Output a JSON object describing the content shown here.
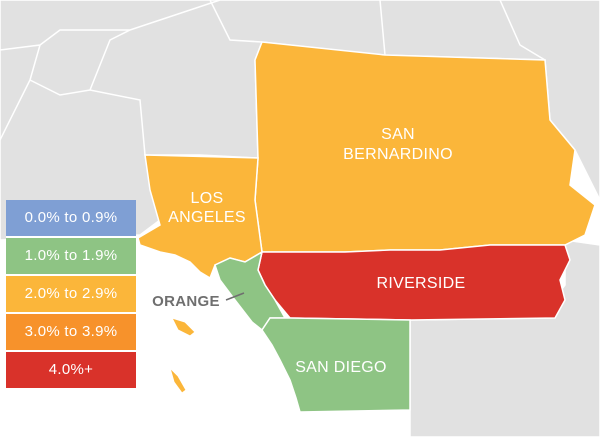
{
  "colors": {
    "background_land": "#e1e1e1",
    "border": "#ffffff",
    "range_0_0_9": "#7f9fd4",
    "range_1_1_9": "#8ec484",
    "range_2_2_9": "#fbb63a",
    "range_3_3_9": "#f7922b",
    "range_4_plus": "#d9322a",
    "orange_label": "#6f6f6f"
  },
  "legend": [
    {
      "label": "0.0% to 0.9%",
      "color": "#7f9fd4"
    },
    {
      "label": "1.0% to 1.9%",
      "color": "#8ec484"
    },
    {
      "label": "2.0% to 2.9%",
      "color": "#fbb63a"
    },
    {
      "label": "3.0% to 3.9%",
      "color": "#f7922b"
    },
    {
      "label": "4.0%+",
      "color": "#d9322a"
    }
  ],
  "counties": {
    "los_angeles": {
      "line1": "LOS",
      "line2": "ANGELES",
      "range": "2.0% to 2.9%"
    },
    "san_bernardino": {
      "line1": "SAN",
      "line2": "BERNARDINO",
      "range": "2.0% to 2.9%"
    },
    "riverside": {
      "name": "RIVERSIDE",
      "range": "4.0%+"
    },
    "orange": {
      "name": "ORANGE",
      "range": "1.0% to 1.9%"
    },
    "san_diego": {
      "name": "SAN DIEGO",
      "range": "1.0% to 1.9%"
    }
  }
}
